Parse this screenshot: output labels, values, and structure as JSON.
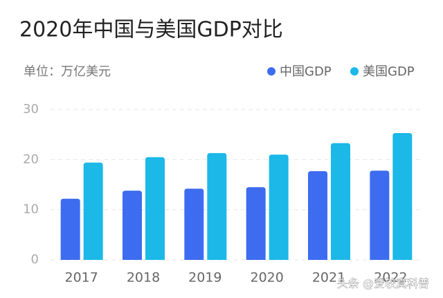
{
  "chart_data": {
    "type": "bar",
    "title": "2020年中国与美国GDP对比",
    "unit_label": "单位：万亿美元",
    "categories": [
      "2017",
      "2018",
      "2019",
      "2020",
      "2021",
      "2022"
    ],
    "series": [
      {
        "name": "中国GDP",
        "color": "#3d6cf0",
        "values": [
          12.2,
          13.8,
          14.2,
          14.5,
          17.7,
          17.8
        ]
      },
      {
        "name": "美国GDP",
        "color": "#1bb8e8",
        "values": [
          19.4,
          20.5,
          21.3,
          21.0,
          23.3,
          25.3
        ]
      }
    ],
    "ylim": [
      0,
      30
    ],
    "yticks": [
      0,
      10,
      20,
      30
    ],
    "grid": true,
    "watermark": "头条 @爱较真科普"
  }
}
